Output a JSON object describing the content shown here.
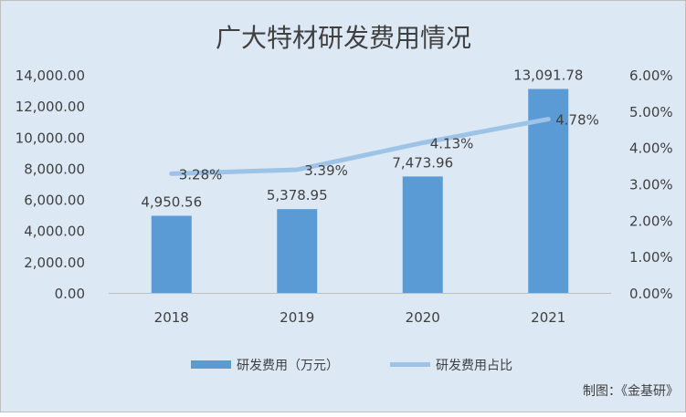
{
  "chart_data": {
    "type": "bar",
    "title": "广大特材研发费用情况",
    "categories": [
      "2018",
      "2019",
      "2020",
      "2021"
    ],
    "series": [
      {
        "name": "研发费用（万元）",
        "type": "bar",
        "axis": "left",
        "values": [
          4950.56,
          5378.95,
          7473.96,
          13091.78
        ],
        "labels": [
          "4,950.56",
          "5,378.95",
          "7,473.96",
          "13,091.78"
        ],
        "color": "#5b9bd5"
      },
      {
        "name": "研发费用占比",
        "type": "line",
        "axis": "right",
        "values": [
          3.28,
          3.39,
          4.13,
          4.78
        ],
        "labels": [
          "3.28%",
          "3.39%",
          "4.13%",
          "4.78%"
        ],
        "color": "#9dc3e6"
      }
    ],
    "ylim": [
      0,
      14000
    ],
    "y2lim": [
      0,
      6
    ],
    "yticks": [
      "0.00",
      "2,000.00",
      "4,000.00",
      "6,000.00",
      "8,000.00",
      "10,000.00",
      "12,000.00",
      "14,000.00"
    ],
    "y2ticks": [
      "0.00%",
      "1.00%",
      "2.00%",
      "3.00%",
      "4.00%",
      "5.00%",
      "6.00%"
    ],
    "grid": false,
    "legend": "bottom",
    "source": "制图：《金基研》"
  }
}
